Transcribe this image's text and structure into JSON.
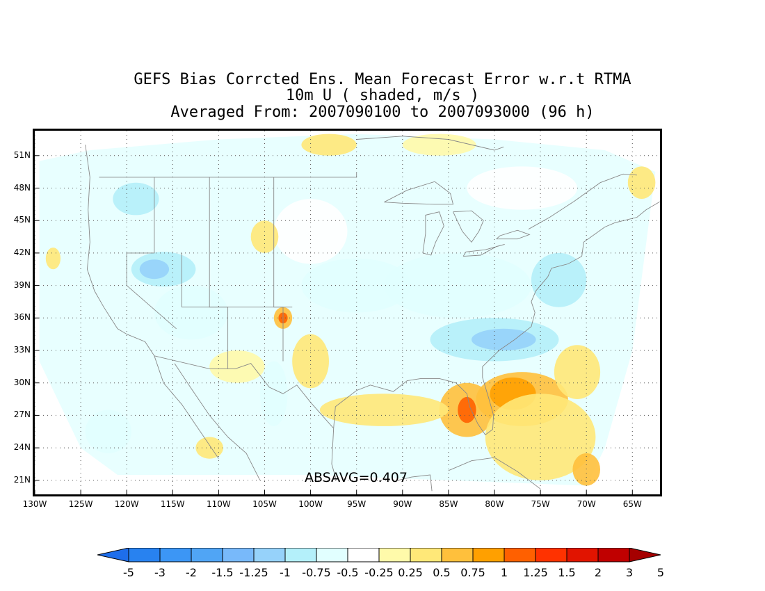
{
  "title": {
    "line1": "GEFS Bias Corrcted Ens. Mean Forecast Error w.r.t RTMA",
    "line2": "10m U ( shaded, m/s )",
    "line3": "Averaged From: 2007090100 to 2007093000 (96 h)"
  },
  "map": {
    "lon_range": [
      -130,
      -62
    ],
    "lat_range": [
      19.7,
      53.3
    ],
    "lat_ticks": [
      51,
      48,
      45,
      42,
      39,
      36,
      33,
      30,
      27,
      24,
      21
    ],
    "lat_labels": [
      "51N",
      "48N",
      "45N",
      "42N",
      "39N",
      "36N",
      "33N",
      "30N",
      "27N",
      "24N",
      "21N"
    ],
    "lon_ticks": [
      -130,
      -125,
      -120,
      -115,
      -110,
      -105,
      -100,
      -95,
      -90,
      -85,
      -80,
      -75,
      -70,
      -65
    ],
    "lon_labels": [
      "130W",
      "125W",
      "120W",
      "115W",
      "110W",
      "105W",
      "100W",
      "95W",
      "90W",
      "85W",
      "80W",
      "75W",
      "70W",
      "65W"
    ],
    "absavg_label": "ABSAVG=0.407",
    "grid": "dotted",
    "field_regions": [
      {
        "kind": "neg",
        "level": -0.75,
        "lon": -116,
        "lat": 40.5,
        "rlon": 3.5,
        "rlat": 1.6
      },
      {
        "kind": "neg",
        "level": -1,
        "lon": -117,
        "lat": 40.5,
        "rlon": 1.6,
        "rlat": 0.9
      },
      {
        "kind": "neg",
        "level": -0.5,
        "lon": -113,
        "lat": 36.5,
        "rlon": 4,
        "rlat": 2.5
      },
      {
        "kind": "neg",
        "level": -0.75,
        "lon": -119,
        "lat": 47,
        "rlon": 2.5,
        "rlat": 1.5
      },
      {
        "kind": "neg",
        "level": -0.5,
        "lon": -95,
        "lat": 39,
        "rlon": 6,
        "rlat": 2.5
      },
      {
        "kind": "neg",
        "level": -0.5,
        "lon": -84,
        "lat": 39,
        "rlon": 8,
        "rlat": 3
      },
      {
        "kind": "neg",
        "level": -0.75,
        "lon": -80,
        "lat": 34,
        "rlon": 7,
        "rlat": 2
      },
      {
        "kind": "neg",
        "level": -1,
        "lon": -79,
        "lat": 34,
        "rlon": 3.5,
        "rlat": 1
      },
      {
        "kind": "neg",
        "level": -0.75,
        "lon": -73,
        "lat": 39.5,
        "rlon": 3,
        "rlat": 2.5
      },
      {
        "kind": "neg",
        "level": -0.5,
        "lon": -122,
        "lat": 25.5,
        "rlon": 2.5,
        "rlat": 2
      },
      {
        "kind": "neg",
        "level": -0.5,
        "lon": -104,
        "lat": 29,
        "rlon": 1.5,
        "rlat": 3
      },
      {
        "kind": "neg",
        "level": -0.25,
        "lon": -100,
        "lat": 44,
        "rlon": 4,
        "rlat": 3
      },
      {
        "kind": "neg",
        "level": -0.25,
        "lon": -77,
        "lat": 48,
        "rlon": 6,
        "rlat": 2
      },
      {
        "kind": "pos",
        "level": 0.75,
        "lon": -83,
        "lat": 27.5,
        "rlon": 3,
        "rlat": 2.5
      },
      {
        "kind": "pos",
        "level": 1.25,
        "lon": -83,
        "lat": 27.5,
        "rlon": 1,
        "rlat": 1.2
      },
      {
        "kind": "pos",
        "level": 0.75,
        "lon": -77,
        "lat": 28.5,
        "rlon": 5,
        "rlat": 2.5
      },
      {
        "kind": "pos",
        "level": 1,
        "lon": -78,
        "lat": 29,
        "rlon": 2.5,
        "rlat": 1.5
      },
      {
        "kind": "pos",
        "level": 0.5,
        "lon": -75,
        "lat": 25,
        "rlon": 6,
        "rlat": 4
      },
      {
        "kind": "pos",
        "level": 0.5,
        "lon": -92,
        "lat": 27.5,
        "rlon": 7,
        "rlat": 1.5
      },
      {
        "kind": "pos",
        "level": 0.75,
        "lon": -103,
        "lat": 36,
        "rlon": 1,
        "rlat": 1
      },
      {
        "kind": "pos",
        "level": 1.25,
        "lon": -103,
        "lat": 36,
        "rlon": 0.5,
        "rlat": 0.5
      },
      {
        "kind": "pos",
        "level": 0.75,
        "lon": -70,
        "lat": 22,
        "rlon": 1.5,
        "rlat": 1.5
      },
      {
        "kind": "pos",
        "level": 0.5,
        "lon": -71,
        "lat": 31,
        "rlon": 2.5,
        "rlat": 2.5
      },
      {
        "kind": "pos",
        "level": 0.5,
        "lon": -100,
        "lat": 32,
        "rlon": 2,
        "rlat": 2.5
      },
      {
        "kind": "pos",
        "level": 0.5,
        "lon": -105,
        "lat": 43.5,
        "rlon": 1.5,
        "rlat": 1.5
      },
      {
        "kind": "pos",
        "level": 0.5,
        "lon": -111,
        "lat": 24,
        "rlon": 1.5,
        "rlat": 1
      },
      {
        "kind": "pos",
        "level": 0.5,
        "lon": -128,
        "lat": 41.5,
        "rlon": 0.8,
        "rlat": 1
      },
      {
        "kind": "pos",
        "level": 0.5,
        "lon": -64,
        "lat": 48.5,
        "rlon": 1.5,
        "rlat": 1.5
      },
      {
        "kind": "pos",
        "level": 0.5,
        "lon": -98,
        "lat": 52,
        "rlon": 3,
        "rlat": 1
      },
      {
        "kind": "pos",
        "level": 0.25,
        "lon": -108,
        "lat": 31.5,
        "rlon": 3,
        "rlat": 1.5
      },
      {
        "kind": "pos",
        "level": 0.25,
        "lon": -86,
        "lat": 52,
        "rlon": 4,
        "rlat": 1
      }
    ]
  },
  "colorbar": {
    "levels": [
      "-5",
      "-3",
      "-2",
      "-1.5",
      "-1.25",
      "-1",
      "-0.75",
      "-0.5",
      "-0.25",
      "0.25",
      "0.5",
      "0.75",
      "1",
      "1.25",
      "1.5",
      "2",
      "3",
      "5"
    ],
    "colors": [
      "#1e6eeb",
      "#2882f0",
      "#3c96f5",
      "#50a5f5",
      "#78b9fa",
      "#96d2fa",
      "#b4f0fa",
      "#e1ffff",
      "#ffffff",
      "#fffaaa",
      "#ffe878",
      "#ffc03c",
      "#ffa000",
      "#ff6000",
      "#ff3200",
      "#e11400",
      "#c00000",
      "#a50000"
    ]
  },
  "style": {
    "land_color": "#ffffff",
    "grid_color": "#555555",
    "coast_color": "#888888"
  }
}
